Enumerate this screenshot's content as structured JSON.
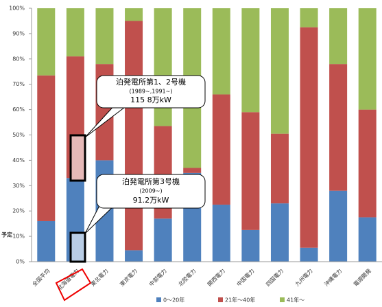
{
  "chart_data": {
    "type": "bar",
    "stacked": true,
    "categories": [
      "全国平均",
      "北海道電力",
      "東北電力",
      "東京電力",
      "中部電力",
      "北陸電力",
      "関西電力",
      "中国電力",
      "四国電力",
      "九州電力",
      "沖縄電力",
      "電源開発"
    ],
    "series": [
      {
        "name": "0～20年",
        "color": "#4f81bd",
        "values": [
          16,
          33,
          40,
          4.5,
          17,
          35,
          22.5,
          12.5,
          23,
          5.5,
          28,
          17.5
        ]
      },
      {
        "name": "21年～40年",
        "color": "#c0504d",
        "values": [
          57.5,
          48,
          38,
          90.5,
          36.5,
          2,
          43.5,
          46.5,
          27.5,
          87,
          50,
          42.5
        ]
      },
      {
        "name": "41年～",
        "color": "#9bbb59",
        "values": [
          26.5,
          19,
          22,
          5,
          46.5,
          63,
          34,
          41,
          49.5,
          7.5,
          22,
          40
        ]
      }
    ],
    "ylim": [
      0,
      100
    ],
    "yticks": [
      {
        "value": 0,
        "label": "0%"
      },
      {
        "value": 10,
        "label": "10%"
      },
      {
        "value": 20,
        "label": "20%"
      },
      {
        "value": 30,
        "label": "30%"
      },
      {
        "value": 40,
        "label": "40%"
      },
      {
        "value": 50,
        "label": "50%"
      },
      {
        "value": 60,
        "label": "60%"
      },
      {
        "value": 70,
        "label": "70%"
      },
      {
        "value": 80,
        "label": "80%"
      },
      {
        "value": 90,
        "label": "90%"
      },
      {
        "value": 100,
        "label": "100%"
      }
    ],
    "grid": false,
    "annotations": [
      "泊発電所第1、2号機",
      "(1989~,1991~)",
      "115 8万kW",
      "泊発電所第3号機",
      "(2009~)",
      "91.2万kW",
      "予定"
    ]
  }
}
